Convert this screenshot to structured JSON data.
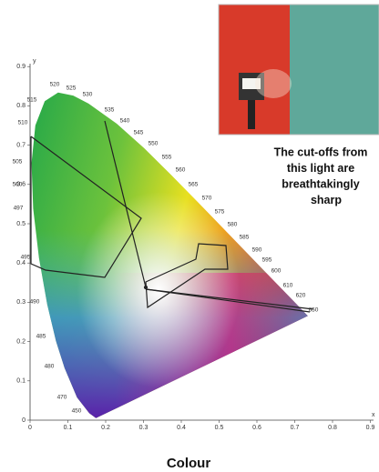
{
  "photo_caption": [
    "The cut-offs from",
    "this light are",
    "breathtakingly",
    "sharp"
  ],
  "diagram": {
    "x_axis_label": "x",
    "y_axis_label": "y",
    "x_ticks": [
      "0",
      "0.1",
      "0.2",
      "0.3",
      "0.4",
      "0.5",
      "0.6",
      "0.7",
      "0.8",
      "0.9"
    ],
    "y_ticks": [
      "0",
      "0.1",
      "0.2",
      "0.3",
      "0.4",
      "0.5",
      "0.6",
      "0.7",
      "0.8",
      "0.9"
    ],
    "wavelength_labels": [
      "520",
      "525",
      "530",
      "515",
      "535",
      "510",
      "540",
      "545",
      "505",
      "550",
      "555",
      "560",
      "500",
      "565",
      "570",
      "575",
      "497",
      "580",
      "585",
      "590",
      "595",
      "495",
      "600",
      "610",
      "620",
      "490",
      "650",
      "485",
      "480",
      "470",
      "450"
    ]
  },
  "title": "Colour"
}
